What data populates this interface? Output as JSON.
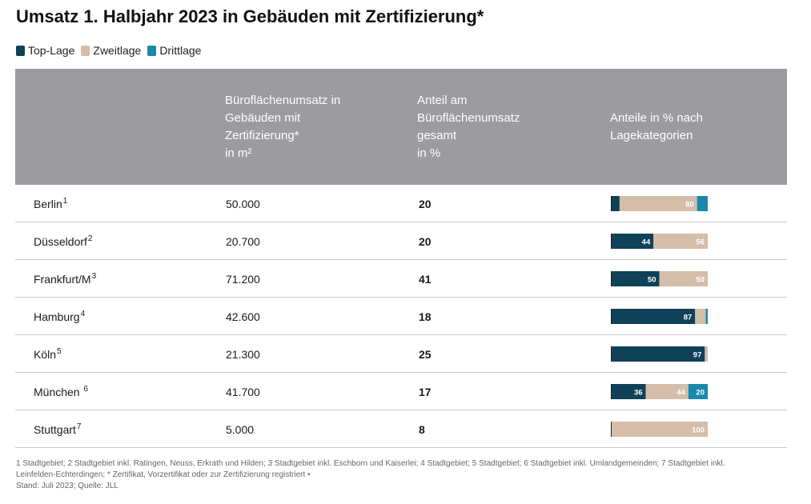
{
  "title": "Umsatz 1. Halbjahr 2023 in Gebäuden mit Zertifizierung*",
  "colors": {
    "top": "#0f4158",
    "zweit": "#d4bda9",
    "dritt": "#1a88a8",
    "header_bg": "#9c9ba0"
  },
  "chart_data": {
    "type": "table",
    "title": "Umsatz 1. Halbjahr 2023 in Gebäuden mit Zertifizierung*",
    "legend": {
      "placement": "top-left",
      "entries": [
        "Top-Lage",
        "Zweitlage",
        "Drittlage"
      ]
    },
    "columns": [
      "",
      "Büroflächenumsatz in\nGebäuden mit\nZertifizierung*\nin m²",
      "Anteil am\nBüroflächenumsatz\ngesamt\nin %",
      "Anteile in % nach\nLagekategorien"
    ],
    "rows": [
      {
        "city": "Berlin",
        "sup": "1",
        "area": "50.000",
        "share": "20",
        "segments": [
          {
            "value": 9,
            "label": ""
          },
          {
            "value": 80,
            "label": "80"
          },
          {
            "value": 11,
            "label": ""
          }
        ]
      },
      {
        "city": "Düsseldorf",
        "sup": "2",
        "area": "20.700",
        "share": "20",
        "segments": [
          {
            "value": 44,
            "label": "44"
          },
          {
            "value": 56,
            "label": "56"
          },
          {
            "value": 0,
            "label": ""
          }
        ]
      },
      {
        "city": "Frankfurt/M",
        "sup": "3",
        "area": "71.200",
        "share": "41",
        "segments": [
          {
            "value": 50,
            "label": "50"
          },
          {
            "value": 50,
            "label": "50"
          },
          {
            "value": 0,
            "label": ""
          }
        ]
      },
      {
        "city": "Hamburg",
        "sup": "4",
        "area": "42.600",
        "share": "18",
        "segments": [
          {
            "value": 87,
            "label": "87"
          },
          {
            "value": 11,
            "label": ""
          },
          {
            "value": 2,
            "label": ""
          }
        ]
      },
      {
        "city": "Köln",
        "sup": "5",
        "area": "21.300",
        "share": "25",
        "segments": [
          {
            "value": 97,
            "label": "97"
          },
          {
            "value": 3,
            "label": ""
          },
          {
            "value": 0,
            "label": ""
          }
        ]
      },
      {
        "city": "München ",
        "sup": "6",
        "area": "41.700",
        "share": "17",
        "segments": [
          {
            "value": 36,
            "label": "36"
          },
          {
            "value": 44,
            "label": "44"
          },
          {
            "value": 20,
            "label": "20"
          }
        ]
      },
      {
        "city": "Stuttgart",
        "sup": "7",
        "area": "5.000",
        "share": "8",
        "segments": [
          {
            "value": 0,
            "label": ""
          },
          {
            "value": 100,
            "label": "100"
          },
          {
            "value": 0,
            "label": ""
          }
        ]
      }
    ]
  },
  "footnotes": [
    "1 Stadtgebiet; 2 Stadtgebiet inkl. Ratingen, Neuss, Erkrath und Hilden; 3 Stadtgebiet inkl. Eschborn und Kaiserlei; 4 Stadtgebiet; 5 Stadtgebiet; 6 Stadtgebiet inkl. Umlandgemeinden; 7 Stadtgebiet inkl.",
    "Leinfelden-Echterdingen; * Zertifikat, Vorzertifikat oder zur Zertifizierung registriert •",
    "Stand: Juli 2023; Quelle: JLL"
  ]
}
